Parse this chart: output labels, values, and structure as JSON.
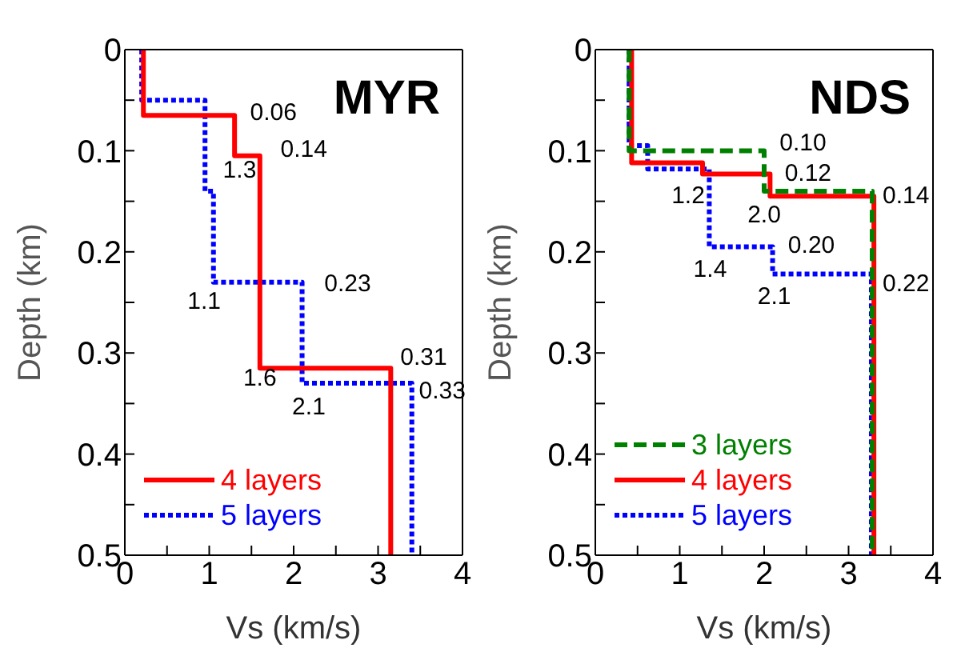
{
  "chart_data": [
    {
      "type": "line",
      "title": "MYR",
      "xlabel": "Vs (km/s)",
      "ylabel": "Depth (km)",
      "xlim": [
        0,
        4
      ],
      "xticks": [
        0,
        {
          "value": 0.5,
          "label": null
        },
        1,
        {
          "value": 1.5,
          "label": null
        },
        2,
        {
          "value": 2.5,
          "label": null
        },
        3,
        {
          "value": 3.5,
          "label": null
        },
        4
      ],
      "ylim": [
        0.5,
        0
      ],
      "yticks": [
        0,
        {
          "value": 0.05,
          "label": null
        },
        0.1,
        {
          "value": 0.15,
          "label": null
        },
        0.2,
        {
          "value": 0.25,
          "label": null
        },
        0.3,
        {
          "value": 0.35,
          "label": null
        },
        0.4,
        {
          "value": 0.45,
          "label": null
        },
        0.5
      ],
      "legend": "bottom left",
      "marker": "none",
      "series": [
        {
          "name": "5 layers",
          "color": "#0000ff",
          "line_style": "dotted",
          "x": [
            0.2,
            0.2,
            0.95,
            0.95,
            1.05,
            1.05,
            2.1,
            2.1,
            3.4,
            3.4
          ],
          "values": [
            0,
            0.05,
            0.05,
            0.14,
            0.14,
            0.23,
            0.23,
            0.33,
            0.33,
            0.5
          ]
        },
        {
          "name": "4 layers",
          "color": "#ff0000",
          "line_style": "solid",
          "x": [
            0.22,
            0.22,
            1.3,
            1.3,
            1.6,
            1.6,
            3.15,
            3.15
          ],
          "values": [
            0,
            0.065,
            0.065,
            0.105,
            0.105,
            0.315,
            0.315,
            0.5
          ]
        }
      ],
      "annotations": [
        "0.06",
        "0.14",
        "1.3",
        "1.1",
        "0.23",
        "0.31",
        "0.33",
        "1.6",
        "2.1"
      ]
    },
    {
      "type": "line",
      "title": "NDS",
      "xlabel": "Vs (km/s)",
      "ylabel": "Depth (km)",
      "xlim": [
        0,
        4
      ],
      "xticks": [
        0,
        {
          "value": 0.5,
          "label": null
        },
        1,
        {
          "value": 1.5,
          "label": null
        },
        2,
        {
          "value": 2.5,
          "label": null
        },
        3,
        {
          "value": 3.5,
          "label": null
        },
        4
      ],
      "ylim": [
        0.5,
        0
      ],
      "yticks": [
        0,
        {
          "value": 0.05,
          "label": null
        },
        0.1,
        {
          "value": 0.15,
          "label": null
        },
        0.2,
        {
          "value": 0.25,
          "label": null
        },
        0.3,
        {
          "value": 0.35,
          "label": null
        },
        0.4,
        {
          "value": 0.45,
          "label": null
        },
        0.5
      ],
      "legend": "bottom left",
      "marker": "none",
      "series": [
        {
          "name": "5 layers",
          "color": "#0000ff",
          "line_style": "dotted",
          "x": [
            0.4,
            0.4,
            0.62,
            0.62,
            1.35,
            1.35,
            2.1,
            2.1,
            3.27,
            3.27
          ],
          "values": [
            0,
            0.095,
            0.095,
            0.118,
            0.118,
            0.195,
            0.195,
            0.222,
            0.222,
            0.5
          ]
        },
        {
          "name": "4 layers",
          "color": "#ff0000",
          "line_style": "solid",
          "x": [
            0.43,
            0.43,
            1.27,
            1.27,
            2.07,
            2.07,
            3.3,
            3.3
          ],
          "values": [
            0,
            0.112,
            0.112,
            0.123,
            0.123,
            0.145,
            0.145,
            0.5
          ]
        },
        {
          "name": "3 layers",
          "color": "#008000",
          "line_style": "dashed",
          "x": [
            0.4,
            0.4,
            2.0,
            2.0,
            3.28,
            3.28
          ],
          "values": [
            0,
            0.1,
            0.1,
            0.14,
            0.14,
            0.5
          ]
        }
      ],
      "annotations": [
        "0.10",
        "0.12",
        "0.14",
        "1.2",
        "2.0",
        "0.20",
        "1.4",
        "2.1",
        "0.22"
      ]
    }
  ]
}
